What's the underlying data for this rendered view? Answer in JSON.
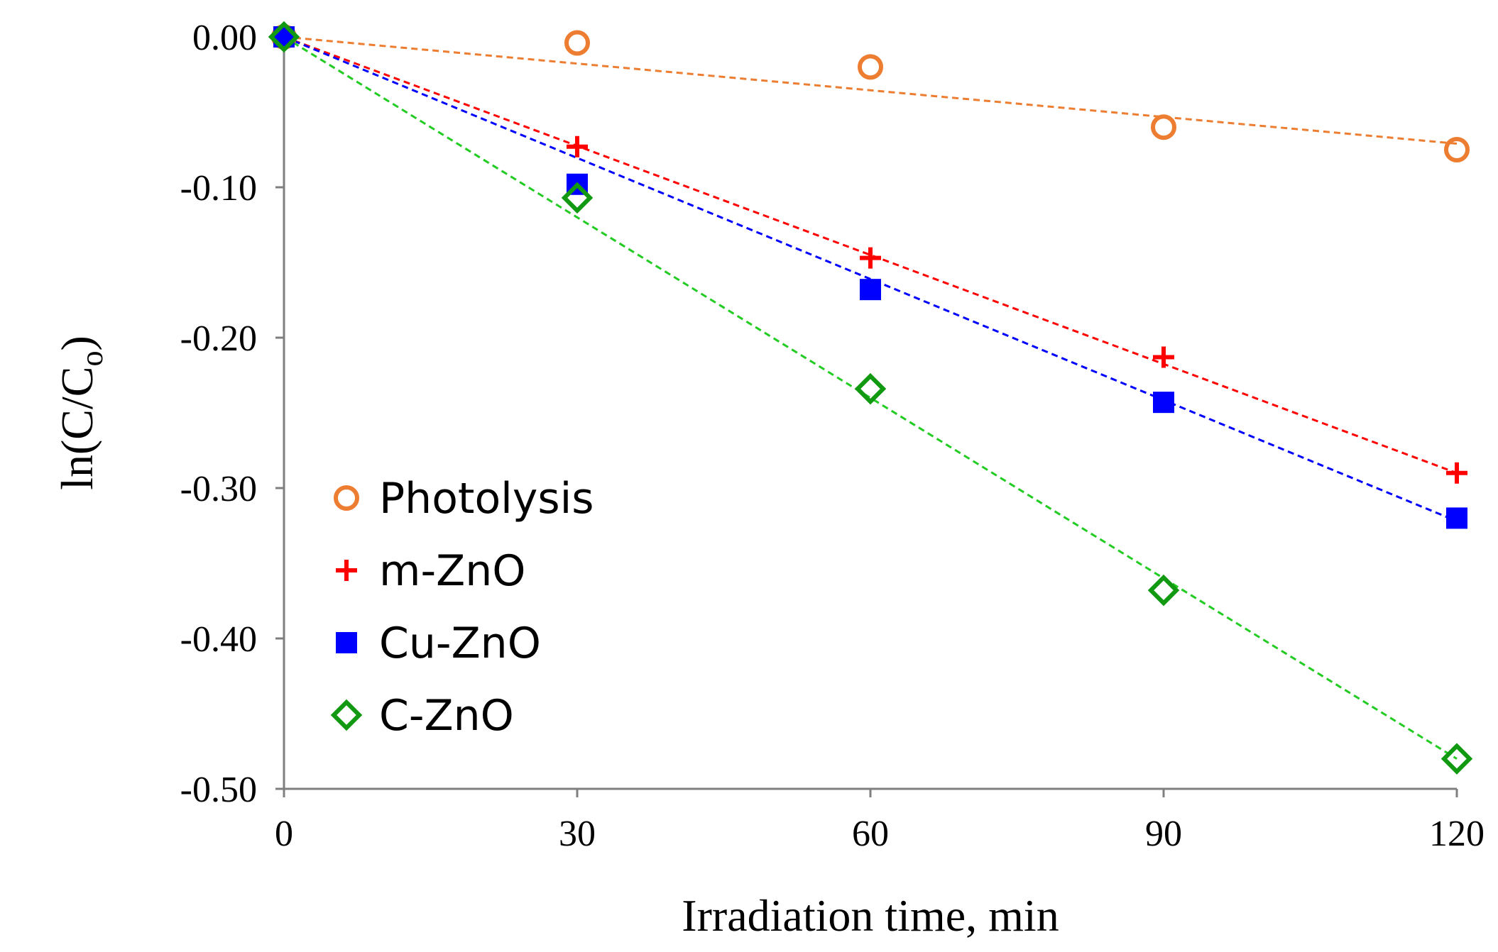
{
  "chart_data": {
    "type": "scatter",
    "title": "",
    "xlabel": "Irradiation time, min",
    "ylabel": "ln(C/C",
    "ylabel_subscript": "o",
    "ylabel_close": ")",
    "xlim": [
      0,
      120
    ],
    "ylim": [
      -0.5,
      0.0
    ],
    "xticks": [
      0,
      30,
      60,
      90,
      120
    ],
    "xtick_labels": [
      "0",
      "30",
      "60",
      "90",
      "120"
    ],
    "yticks": [
      0.0,
      -0.1,
      -0.2,
      -0.3,
      -0.4,
      -0.5
    ],
    "ytick_labels": [
      "0.00",
      "-0.10",
      "-0.20",
      "-0.30",
      "-0.40",
      "-0.50"
    ],
    "grid": false,
    "legend_position": "center-left",
    "x": [
      0,
      30,
      60,
      90,
      120
    ],
    "series": [
      {
        "name": "Photolysis",
        "marker": "open-circle",
        "color": "#ED7D31",
        "values": [
          0.0,
          -0.004,
          -0.02,
          -0.06,
          -0.075
        ],
        "trend_end": -0.071
      },
      {
        "name": "m-ZnO",
        "marker": "plus",
        "color": "#FF0000",
        "values": [
          0.0,
          -0.073,
          -0.147,
          -0.213,
          -0.29
        ],
        "trend_end": -0.29
      },
      {
        "name": "Cu-ZnO",
        "marker": "filled-square",
        "color": "#0000FF",
        "values": [
          0.0,
          -0.098,
          -0.168,
          -0.243,
          -0.32
        ],
        "trend_end": -0.322
      },
      {
        "name": "C-ZnO",
        "marker": "open-diamond",
        "trend_color": "#22CC22",
        "color": "#119911",
        "values": [
          0.0,
          -0.107,
          -0.234,
          -0.368,
          -0.48
        ],
        "trend_end": -0.48
      }
    ]
  }
}
